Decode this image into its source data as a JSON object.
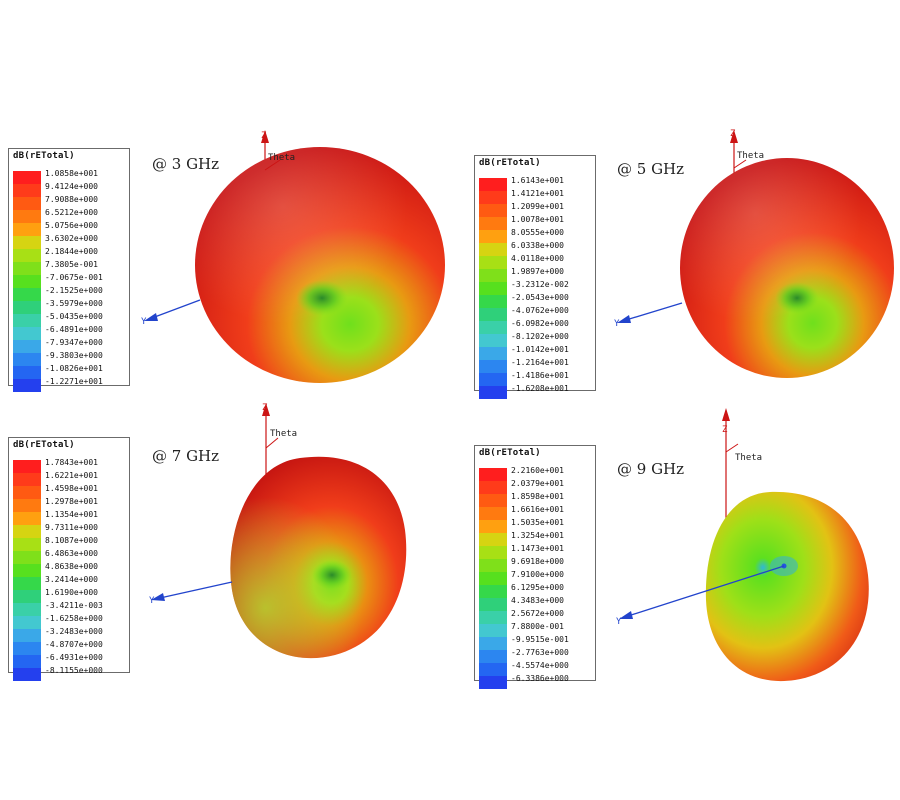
{
  "panels": [
    {
      "id": "p3",
      "frequency": "@ 3 GHz",
      "legend_title": "dB(rETotal)",
      "legend_values": [
        "1.0858e+001",
        "9.4124e+000",
        "7.9088e+000",
        "6.5212e+000",
        "5.0756e+000",
        "3.6302e+000",
        "2.1844e+000",
        "7.3805e-001",
        "-7.0675e-001",
        "-2.1525e+000",
        "-3.5979e+000",
        "-5.0435e+000",
        "-6.4891e+000",
        "-7.9347e+000",
        "-9.3803e+000",
        "-1.0826e+001",
        "-1.2271e+001"
      ]
    },
    {
      "id": "p5",
      "frequency": "@ 5 GHz",
      "legend_title": "dB(rETotal)",
      "legend_values": [
        "1.6143e+001",
        "1.4121e+001",
        "1.2099e+001",
        "1.0078e+001",
        "8.0555e+000",
        "6.0338e+000",
        "4.0118e+000",
        "1.9897e+000",
        "-3.2312e-002",
        "-2.0543e+000",
        "-4.0762e+000",
        "-6.0982e+000",
        "-8.1202e+000",
        "-1.0142e+001",
        "-1.2164e+001",
        "-1.4186e+001",
        "-1.6208e+001"
      ]
    },
    {
      "id": "p7",
      "frequency": "@ 7 GHz",
      "legend_title": "dB(rETotal)",
      "legend_values": [
        "1.7843e+001",
        "1.6221e+001",
        "1.4598e+001",
        "1.2978e+001",
        "1.1354e+001",
        "9.7311e+000",
        "8.1087e+000",
        "6.4863e+000",
        "4.8638e+000",
        "3.2414e+000",
        "1.6190e+000",
        "-3.4211e-003",
        "-1.6258e+000",
        "-3.2483e+000",
        "-4.8707e+000",
        "-6.4931e+000",
        "-8.1155e+000"
      ]
    },
    {
      "id": "p9",
      "frequency": "@ 9 GHz",
      "legend_title": "dB(rETotal)",
      "legend_values": [
        "2.2160e+001",
        "2.0379e+001",
        "1.8598e+001",
        "1.6616e+001",
        "1.5035e+001",
        "1.3254e+001",
        "1.1473e+001",
        "9.6918e+000",
        "7.9100e+000",
        "6.1295e+000",
        "4.3483e+000",
        "2.5672e+000",
        "7.8800e-001",
        "-9.9515e-001",
        "-2.7763e+000",
        "-4.5574e+000",
        "-6.3386e+000"
      ]
    }
  ],
  "axes": {
    "z": "Z",
    "y": "Y",
    "theta": "Theta"
  },
  "colors": {
    "scale": [
      "#ff1e1e",
      "#ff3b1a",
      "#ff5a12",
      "#ff7a10",
      "#ffa010",
      "#d6d412",
      "#a8e015",
      "#7fe01a",
      "#57e01e",
      "#35d84a",
      "#2fd07a",
      "#3ad0a8",
      "#43c8d0",
      "#3aa8e8",
      "#2c86f0",
      "#2466f2",
      "#2440ee"
    ]
  }
}
